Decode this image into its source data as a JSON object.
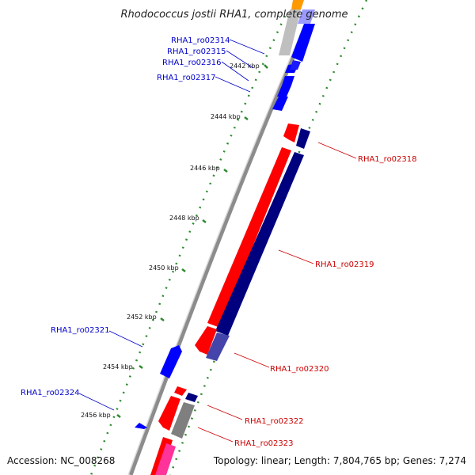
{
  "title": "Rhodococcus jostii RHA1, complete genome",
  "footer": {
    "accession": "Accession: NC_008268",
    "summary": "Topology: linear; Length: 7,804,765 bp; Genes: 7,274"
  },
  "colors": {
    "forward_cds": "#0000ff",
    "reverse_cds": "#ff0000",
    "reverse_cds_shadow": "#00007f",
    "gray_feature": "#7f7f7f",
    "pink_feature": "#ff3399",
    "orange_feature": "#ff9900",
    "forward_label": "#0000cc",
    "reverse_label": "#cc0000",
    "tick_dots": "#2e8b2e",
    "backbone": "#8c8c8c"
  },
  "ticks": [
    "2442 kbp",
    "2444 kbp",
    "2446 kbp",
    "2448 kbp",
    "2450 kbp",
    "2452 kbp",
    "2454 kbp",
    "2456 kbp"
  ],
  "forward_genes": [
    "RHA1_ro02314",
    "RHA1_ro02315",
    "RHA1_ro02316",
    "RHA1_ro02317",
    "RHA1_ro02321",
    "RHA1_ro02324"
  ],
  "reverse_genes": [
    "RHA1_ro02318",
    "RHA1_ro02319",
    "RHA1_ro02320",
    "RHA1_ro02322",
    "RHA1_ro02323"
  ]
}
